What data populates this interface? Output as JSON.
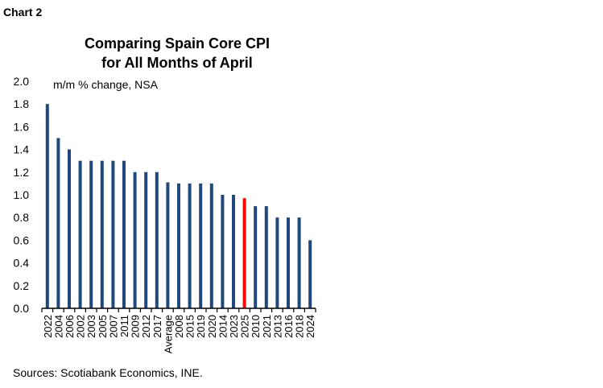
{
  "header": {
    "label": "Chart 2"
  },
  "chart_data": {
    "type": "bar",
    "title": "Comparing Spain Core CPI for All Months of April",
    "title_lines": [
      "Comparing Spain Core CPI",
      "for All Months of April"
    ],
    "ylabel": "m/m % change, NSA",
    "xlabel": "",
    "ylim": [
      0,
      2.0
    ],
    "yticks": [
      "0.0",
      "0.2",
      "0.4",
      "0.6",
      "0.8",
      "1.0",
      "1.2",
      "1.4",
      "1.6",
      "1.8",
      "2.0"
    ],
    "grid": false,
    "categories": [
      "2022",
      "2004",
      "2006",
      "2002",
      "2003",
      "2005",
      "2007",
      "2011",
      "2009",
      "2012",
      "2017",
      "Average",
      "2008",
      "2015",
      "2019",
      "2020",
      "2014",
      "2023",
      "2025",
      "2010",
      "2021",
      "2013",
      "2016",
      "2018",
      "2024"
    ],
    "values": [
      1.8,
      1.5,
      1.4,
      1.3,
      1.3,
      1.3,
      1.3,
      1.3,
      1.2,
      1.2,
      1.2,
      1.11,
      1.1,
      1.1,
      1.1,
      1.1,
      1.0,
      1.0,
      0.97,
      0.9,
      0.9,
      0.8,
      0.8,
      0.8,
      0.6
    ],
    "highlight_category": "2025",
    "colors": {
      "bar": "#1f497d",
      "highlight": "#ff0000"
    }
  },
  "footer": {
    "source": "Sources: Scotiabank Economics, INE."
  }
}
